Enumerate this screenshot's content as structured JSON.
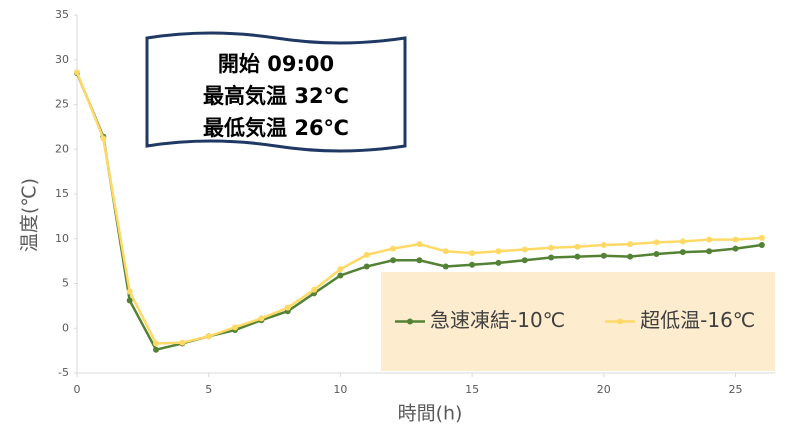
{
  "chart_data": {
    "type": "line",
    "x": [
      0,
      1,
      2,
      3,
      4,
      5,
      6,
      7,
      8,
      9,
      10,
      11,
      12,
      13,
      14,
      15,
      16,
      17,
      18,
      19,
      20,
      21,
      22,
      23,
      24,
      25,
      26
    ],
    "series": [
      {
        "name": "急速凍結-10℃",
        "color": "#548235",
        "values": [
          28.5,
          21.4,
          3.1,
          -2.4,
          -1.7,
          -0.9,
          -0.2,
          0.9,
          1.9,
          3.9,
          5.9,
          6.9,
          7.6,
          7.6,
          6.9,
          7.1,
          7.3,
          7.6,
          7.9,
          8.0,
          8.1,
          8.0,
          8.3,
          8.5,
          8.6,
          8.9,
          9.3
        ]
      },
      {
        "name": "超低温-16℃",
        "color": "#ffd966",
        "values": [
          28.6,
          21.2,
          4.1,
          -1.7,
          -1.6,
          -0.9,
          0.1,
          1.1,
          2.3,
          4.3,
          6.6,
          8.2,
          8.9,
          9.4,
          8.6,
          8.4,
          8.6,
          8.8,
          9.0,
          9.1,
          9.3,
          9.4,
          9.6,
          9.7,
          9.9,
          9.9,
          10.1
        ]
      }
    ],
    "xlim": [
      0,
      26.5
    ],
    "ylim": [
      -5,
      35
    ],
    "xticks": [
      0,
      5,
      10,
      15,
      20,
      25
    ],
    "yticks": [
      -5,
      0,
      5,
      10,
      15,
      20,
      25,
      30,
      35
    ],
    "xlabel": "時間(h)",
    "ylabel": "温度(℃)",
    "grid": false,
    "legend": "bottom-right",
    "annotation": [
      "開始 09:00",
      "最高気温 32℃",
      "最低気温 26℃"
    ]
  }
}
